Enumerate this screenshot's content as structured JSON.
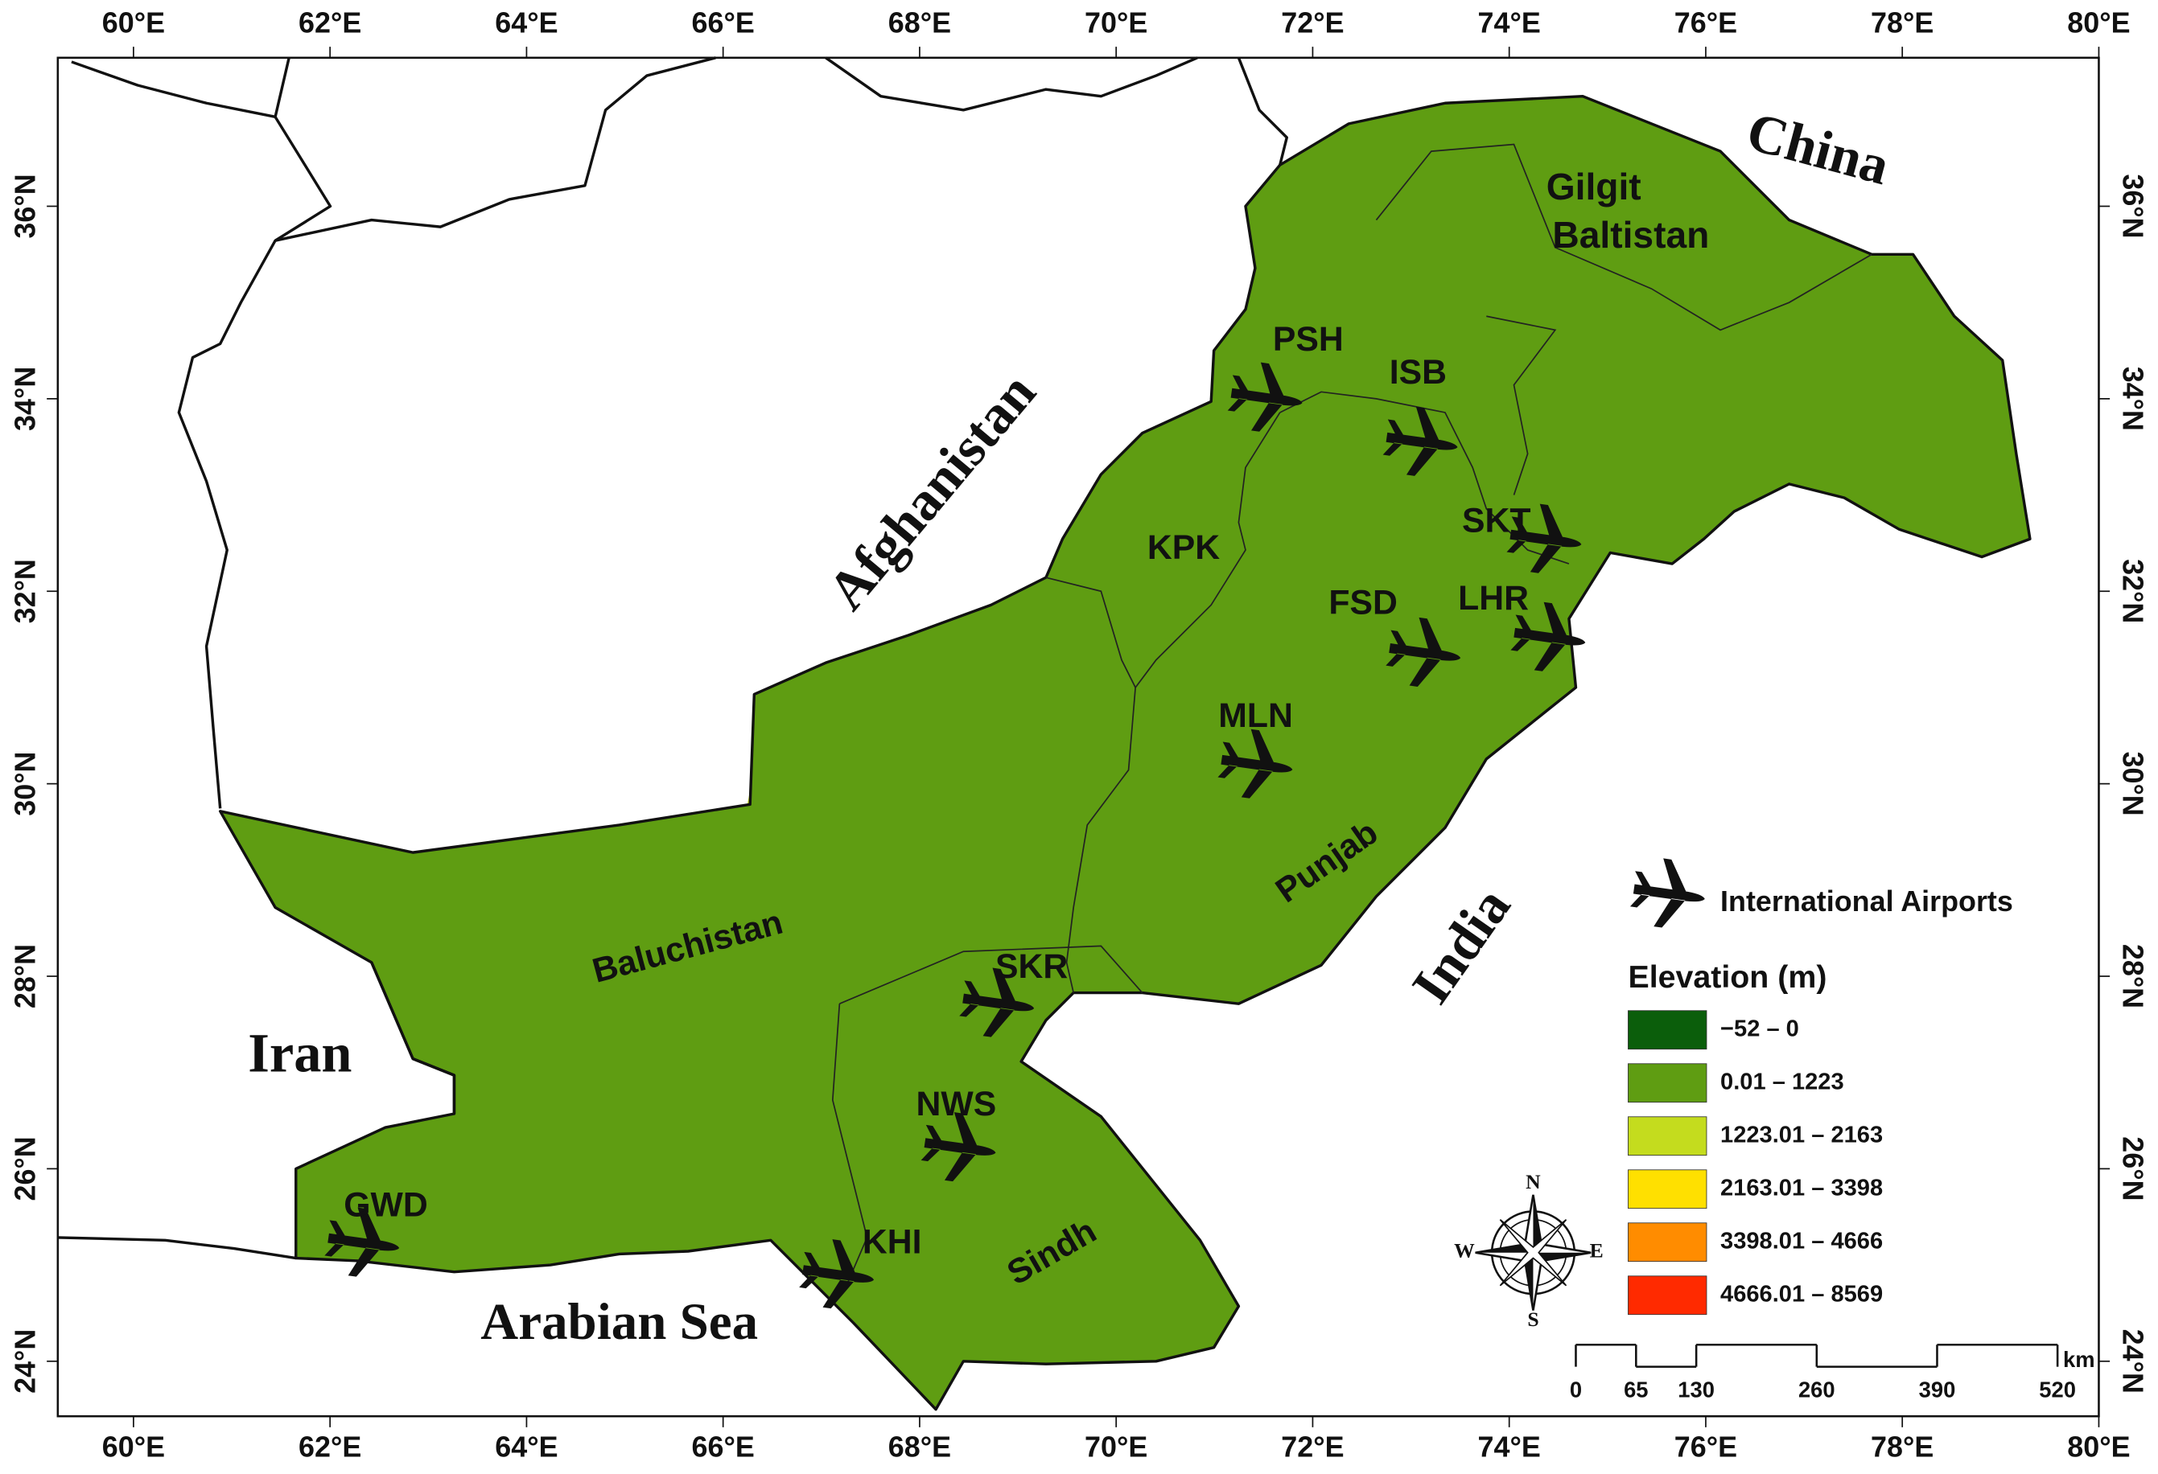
{
  "frame": {
    "lon_ticks": [
      {
        "value": 60,
        "label": "60°E"
      },
      {
        "value": 62,
        "label": "62°E"
      },
      {
        "value": 64,
        "label": "64°E"
      },
      {
        "value": 66,
        "label": "66°E"
      },
      {
        "value": 68,
        "label": "68°E"
      },
      {
        "value": 70,
        "label": "70°E"
      },
      {
        "value": 72,
        "label": "72°E"
      },
      {
        "value": 74,
        "label": "74°E"
      },
      {
        "value": 76,
        "label": "76°E"
      },
      {
        "value": 78,
        "label": "78°E"
      },
      {
        "value": 80,
        "label": "80°E"
      }
    ],
    "lat_ticks": [
      {
        "value": 24,
        "label": "24°N"
      },
      {
        "value": 26,
        "label": "26°N"
      },
      {
        "value": 28,
        "label": "28°N"
      },
      {
        "value": 30,
        "label": "30°N"
      },
      {
        "value": 32,
        "label": "32°N"
      },
      {
        "value": 34,
        "label": "34°N"
      },
      {
        "value": 36,
        "label": "36°N"
      }
    ]
  },
  "place_labels": [
    "China",
    "Afghanistan",
    "India",
    "Iran",
    "Arabian Sea",
    "Gilgit",
    "Baltistan",
    "KPK",
    "Punjab",
    "Baluchistan",
    "Sindh"
  ],
  "airports": [
    {
      "code": "PSH",
      "lon": 71.52,
      "lat": 34.01
    },
    {
      "code": "ISB",
      "lon": 73.1,
      "lat": 33.55
    },
    {
      "code": "SKT",
      "lon": 74.36,
      "lat": 32.54
    },
    {
      "code": "LHR",
      "lon": 74.4,
      "lat": 31.52
    },
    {
      "code": "FSD",
      "lon": 73.13,
      "lat": 31.36
    },
    {
      "code": "MLN",
      "lon": 71.42,
      "lat": 30.2
    },
    {
      "code": "SKR",
      "lon": 68.79,
      "lat": 27.72
    },
    {
      "code": "NWS",
      "lon": 68.4,
      "lat": 26.22
    },
    {
      "code": "KHI",
      "lon": 67.16,
      "lat": 24.9
    },
    {
      "code": "GWD",
      "lon": 62.33,
      "lat": 25.23
    }
  ],
  "airport_legend": "International Airports",
  "elevation_legend": {
    "title": "Elevation (m)",
    "classes": [
      {
        "label": "−52 – 0",
        "color": "#0b5e0b"
      },
      {
        "label": "0.01 – 1223",
        "color": "#5f9d12"
      },
      {
        "label": "1223.01 – 2163",
        "color": "#c4dc1e"
      },
      {
        "label": "2163.01 – 3398",
        "color": "#ffe000"
      },
      {
        "label": "3398.01 – 4666",
        "color": "#ff8c00"
      },
      {
        "label": "4666.01 – 8569",
        "color": "#ff2a00"
      }
    ]
  },
  "compass": [
    "N",
    "E",
    "S",
    "W"
  ],
  "scale_bar": {
    "unit": "km",
    "ticks": [
      0,
      65,
      130,
      260,
      390,
      520
    ]
  }
}
